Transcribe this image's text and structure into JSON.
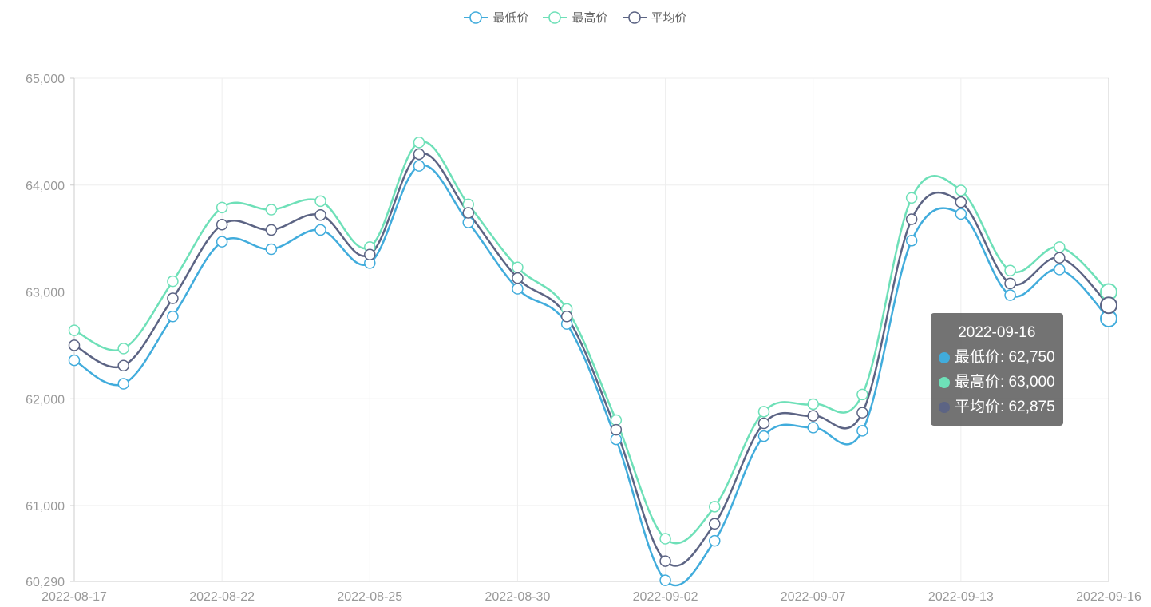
{
  "legend": [
    {
      "name": "最低价",
      "color": "#41acdc"
    },
    {
      "name": "最高价",
      "color": "#6ee0b8"
    },
    {
      "name": "平均价",
      "color": "#5c6484"
    }
  ],
  "tooltip": {
    "date": "2022-09-16",
    "rows": [
      {
        "label": "最低价: 62,750",
        "color": "#41acdc"
      },
      {
        "label": "最高价: 63,000",
        "color": "#6ee0b8"
      },
      {
        "label": "平均价: 62,875",
        "color": "#5c6484"
      }
    ]
  },
  "chart_data": {
    "type": "line",
    "smooth": true,
    "title": "",
    "xlabel": "",
    "ylabel": "",
    "x": [
      "2022-08-17",
      "2022-08-18",
      "2022-08-19",
      "2022-08-22",
      "2022-08-23",
      "2022-08-24",
      "2022-08-25",
      "2022-08-26",
      "2022-08-29",
      "2022-08-30",
      "2022-08-31",
      "2022-09-01",
      "2022-09-02",
      "2022-09-05",
      "2022-09-06",
      "2022-09-07",
      "2022-09-08",
      "2022-09-09",
      "2022-09-13",
      "2022-09-14",
      "2022-09-15",
      "2022-09-16"
    ],
    "x_tick_labels": [
      "2022-08-17",
      "2022-08-22",
      "2022-08-25",
      "2022-08-30",
      "2022-09-02",
      "2022-09-07",
      "2022-09-13",
      "2022-09-16"
    ],
    "y_ticks": [
      "60,290",
      "61,000",
      "62,000",
      "63,000",
      "64,000",
      "65,000"
    ],
    "ylim": [
      60290,
      65000
    ],
    "grid": true,
    "legend_position": "top-center",
    "series": [
      {
        "name": "最低价",
        "color": "#41acdc",
        "values": [
          62360,
          62140,
          62770,
          63470,
          63400,
          63580,
          63270,
          64180,
          63650,
          63030,
          62700,
          61620,
          60300,
          60670,
          61650,
          61730,
          61700,
          63480,
          63730,
          62970,
          63210,
          62750
        ]
      },
      {
        "name": "最高价",
        "color": "#6ee0b8",
        "values": [
          62640,
          62470,
          63100,
          63790,
          63770,
          63850,
          63420,
          64400,
          63820,
          63230,
          62840,
          61800,
          60690,
          60990,
          61880,
          61950,
          62040,
          63880,
          63950,
          63200,
          63420,
          63000
        ]
      },
      {
        "name": "平均价",
        "color": "#5c6484",
        "values": [
          62500,
          62310,
          62940,
          63630,
          63580,
          63720,
          63350,
          64290,
          63740,
          63130,
          62770,
          61710,
          60480,
          60830,
          61770,
          61840,
          61870,
          63680,
          63840,
          63080,
          63320,
          62875
        ]
      }
    ],
    "highlight_index": 21
  }
}
